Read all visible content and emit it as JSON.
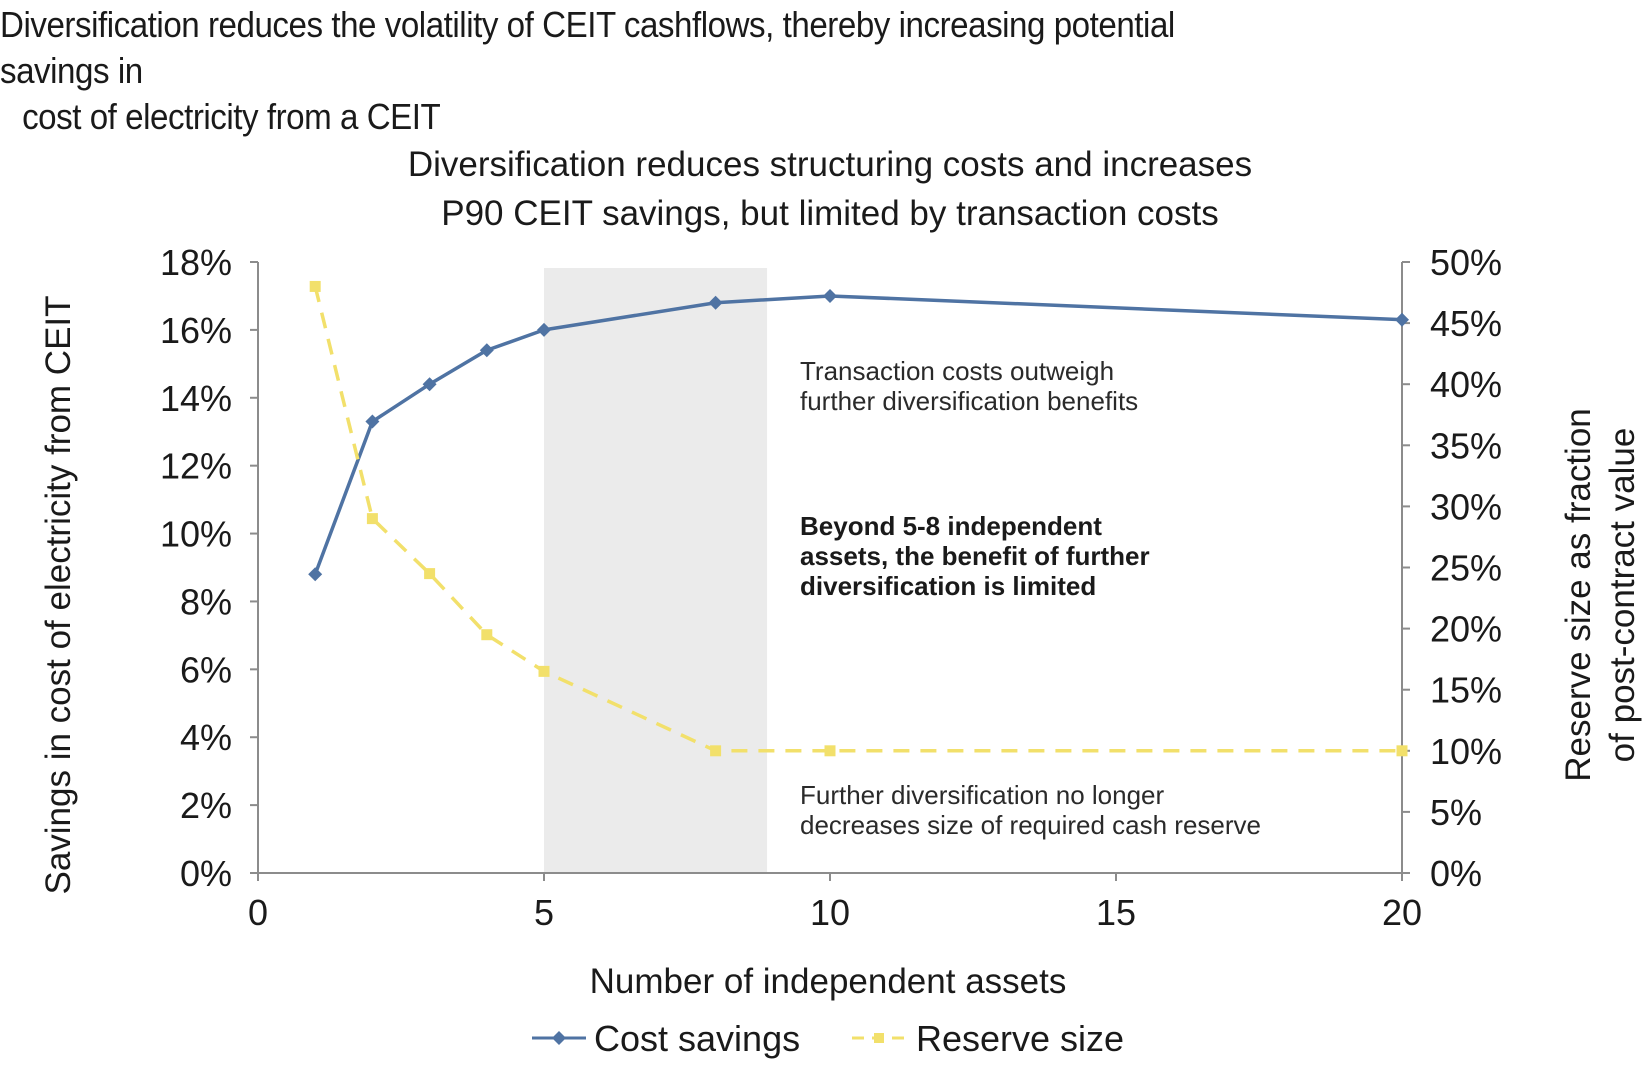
{
  "headline": {
    "line1": "Diversification reduces the volatility of CEIT cashflows, thereby increasing potential savings in",
    "line2": "cost of electricity from a CEIT"
  },
  "chart_data": {
    "type": "line",
    "title_line1": "Diversification reduces structuring costs and increases",
    "title_line2": "P90 CEIT savings, but limited by transaction costs",
    "xlabel": "Number of independent assets",
    "ylabel_left": "Savings in cost of electricity from CEIT",
    "ylabel_right_line1": "Reserve size as fraction",
    "ylabel_right_line2": "of post-contract value",
    "xlim": [
      0,
      20
    ],
    "ylim_left": [
      0,
      18
    ],
    "ylim_right": [
      0,
      50
    ],
    "x_ticks": [
      "0",
      "5",
      "10",
      "15",
      "20"
    ],
    "y_left_ticks": [
      "0%",
      "2%",
      "4%",
      "6%",
      "8%",
      "10%",
      "12%",
      "14%",
      "16%",
      "18%"
    ],
    "y_right_ticks": [
      "0%",
      "5%",
      "10%",
      "15%",
      "20%",
      "25%",
      "30%",
      "35%",
      "40%",
      "45%",
      "50%"
    ],
    "shaded_region": {
      "x_from": 5,
      "x_to": 8.9
    },
    "series": [
      {
        "name": "Cost savings",
        "axis": "left",
        "color": "#4f73a3",
        "marker": "diamond",
        "x": [
          1,
          2,
          3,
          4,
          5,
          8,
          10,
          20
        ],
        "y": [
          8.8,
          13.3,
          14.4,
          15.4,
          16.0,
          16.8,
          17.0,
          16.3
        ]
      },
      {
        "name": "Reserve size",
        "axis": "right",
        "color": "#f2e06b",
        "marker": "square",
        "dashed": true,
        "x": [
          1,
          2,
          3,
          4,
          5,
          8,
          10,
          20
        ],
        "y": [
          48,
          29,
          24.5,
          19.5,
          16.5,
          10,
          10,
          10
        ]
      }
    ],
    "annotations": [
      {
        "id": "transaction",
        "bold": false,
        "lines": [
          "Transaction costs outweigh",
          "further diversification benefits"
        ]
      },
      {
        "id": "beyond",
        "bold": true,
        "lines": [
          "Beyond 5-8 independent",
          "assets, the benefit of further",
          "diversification is limited"
        ]
      },
      {
        "id": "further",
        "bold": false,
        "lines": [
          "Further diversification no longer",
          "decreases size of required cash reserve"
        ]
      }
    ],
    "legend_position": "bottom-center"
  }
}
